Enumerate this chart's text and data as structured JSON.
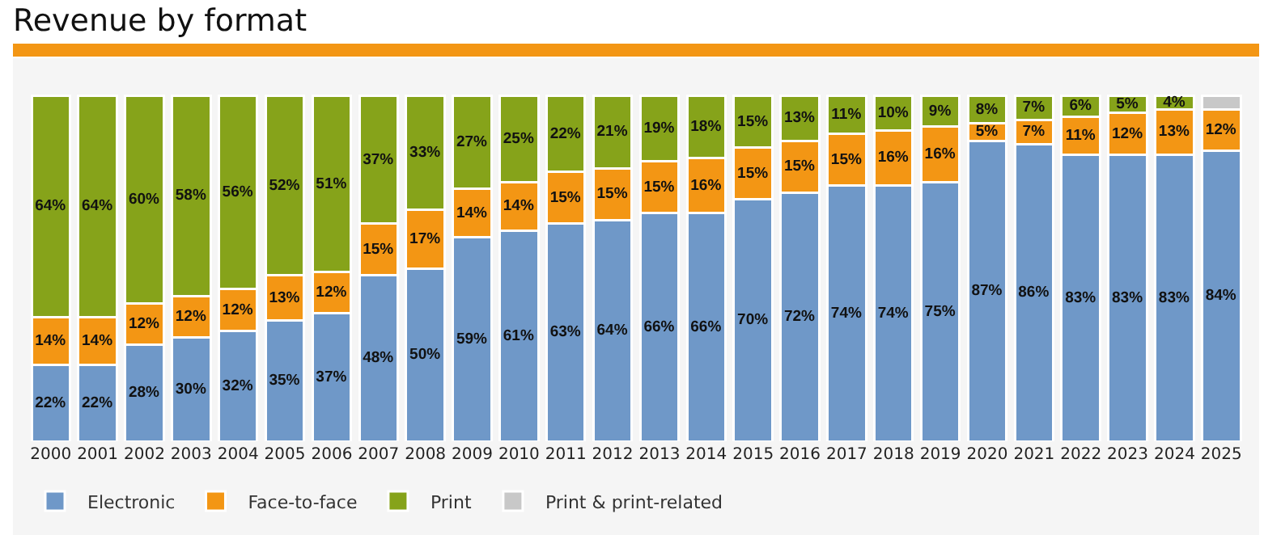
{
  "chart_data": {
    "type": "bar",
    "title": "Revenue by format",
    "stacked": true,
    "legend": "bottom left",
    "categories": [
      "2000",
      "2001",
      "2002",
      "2003",
      "2004",
      "2005",
      "2006",
      "2007",
      "2008",
      "2009",
      "2010",
      "2011",
      "2012",
      "2013",
      "2014",
      "2015",
      "2016",
      "2017",
      "2018",
      "2019",
      "2020",
      "2021",
      "2022",
      "2023",
      "2024",
      "2025"
    ],
    "series": [
      {
        "name": "Electronic",
        "color": "#6f98c8",
        "values": [
          22,
          22,
          28,
          30,
          32,
          35,
          37,
          48,
          50,
          59,
          61,
          63,
          64,
          66,
          66,
          70,
          72,
          74,
          74,
          75,
          87,
          86,
          83,
          83,
          83,
          84
        ],
        "value_labels": [
          "22%",
          "22%",
          "28%",
          "30%",
          "32%",
          "35%",
          "37%",
          "48%",
          "50%",
          "59%",
          "61%",
          "63%",
          "64%",
          "66%",
          "66%",
          "70%",
          "72%",
          "74%",
          "74%",
          "75%",
          "87%",
          "86%",
          "83%",
          "83%",
          "83%",
          "84%"
        ]
      },
      {
        "name": "Face-to-face",
        "color": "#f39614",
        "values": [
          14,
          14,
          12,
          12,
          12,
          13,
          12,
          15,
          17,
          14,
          14,
          15,
          15,
          15,
          16,
          15,
          15,
          15,
          16,
          16,
          5,
          7,
          11,
          12,
          13,
          12
        ],
        "value_labels": [
          "14%",
          "14%",
          "12%",
          "12%",
          "12%",
          "13%",
          "12%",
          "15%",
          "17%",
          "14%",
          "14%",
          "15%",
          "15%",
          "15%",
          "16%",
          "15%",
          "15%",
          "15%",
          "16%",
          "16%",
          "5%",
          "7%",
          "11%",
          "12%",
          "13%",
          "12%"
        ]
      },
      {
        "name": "Print",
        "color": "#86a31a",
        "values": [
          64,
          64,
          60,
          58,
          56,
          52,
          51,
          37,
          33,
          27,
          25,
          22,
          21,
          19,
          18,
          15,
          13,
          11,
          10,
          9,
          8,
          7,
          6,
          5,
          4,
          null
        ],
        "value_labels": [
          "64%",
          "64%",
          "60%",
          "58%",
          "56%",
          "52%",
          "51%",
          "37%",
          "33%",
          "27%",
          "25%",
          "22%",
          "21%",
          "19%",
          "18%",
          "15%",
          "13%",
          "11%",
          "10%",
          "9%",
          "8%",
          "7%",
          "6%",
          "5%",
          "4%",
          null
        ]
      },
      {
        "name": "Print & print-related",
        "color": "#c8c8c8",
        "values": [
          null,
          null,
          null,
          null,
          null,
          null,
          null,
          null,
          null,
          null,
          null,
          null,
          null,
          null,
          null,
          null,
          null,
          null,
          null,
          null,
          null,
          null,
          null,
          null,
          null,
          4
        ],
        "value_labels": [
          null,
          null,
          null,
          null,
          null,
          null,
          null,
          null,
          null,
          null,
          null,
          null,
          null,
          null,
          null,
          null,
          null,
          null,
          null,
          null,
          null,
          null,
          null,
          null,
          null,
          null
        ]
      }
    ]
  }
}
